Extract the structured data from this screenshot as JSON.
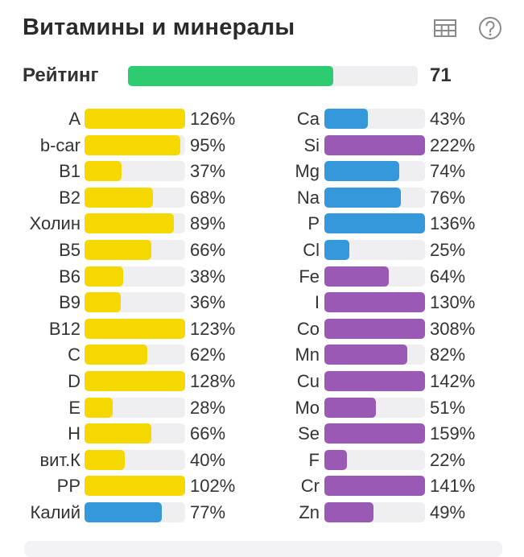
{
  "title": "Витамины и минералы",
  "icons": {
    "table": "table-icon",
    "help": "help-icon"
  },
  "rating": {
    "label": "Рейтинг",
    "value": "71",
    "fraction": 0.71
  },
  "colors": {
    "yellow": "#f5d800",
    "blue": "#3498db",
    "purple": "#9b59b6",
    "green": "#2ecc71",
    "track": "#efeff1"
  },
  "vitamins": [
    {
      "label": "A",
      "pct": "126%",
      "value": 126,
      "color": "yellow"
    },
    {
      "label": "b-car",
      "pct": "95%",
      "value": 95,
      "color": "yellow"
    },
    {
      "label": "B1",
      "pct": "37%",
      "value": 37,
      "color": "yellow"
    },
    {
      "label": "B2",
      "pct": "68%",
      "value": 68,
      "color": "yellow"
    },
    {
      "label": "Холин",
      "pct": "89%",
      "value": 89,
      "color": "yellow"
    },
    {
      "label": "B5",
      "pct": "66%",
      "value": 66,
      "color": "yellow"
    },
    {
      "label": "B6",
      "pct": "38%",
      "value": 38,
      "color": "yellow"
    },
    {
      "label": "B9",
      "pct": "36%",
      "value": 36,
      "color": "yellow"
    },
    {
      "label": "B12",
      "pct": "123%",
      "value": 123,
      "color": "yellow"
    },
    {
      "label": "C",
      "pct": "62%",
      "value": 62,
      "color": "yellow"
    },
    {
      "label": "D",
      "pct": "128%",
      "value": 128,
      "color": "yellow"
    },
    {
      "label": "E",
      "pct": "28%",
      "value": 28,
      "color": "yellow"
    },
    {
      "label": "H",
      "pct": "66%",
      "value": 66,
      "color": "yellow"
    },
    {
      "label": "вит.К",
      "pct": "40%",
      "value": 40,
      "color": "yellow"
    },
    {
      "label": "PP",
      "pct": "102%",
      "value": 102,
      "color": "yellow"
    },
    {
      "label": "Калий",
      "pct": "77%",
      "value": 77,
      "color": "blue"
    }
  ],
  "minerals": [
    {
      "label": "Ca",
      "pct": "43%",
      "value": 43,
      "color": "blue"
    },
    {
      "label": "Si",
      "pct": "222%",
      "value": 222,
      "color": "purple"
    },
    {
      "label": "Mg",
      "pct": "74%",
      "value": 74,
      "color": "blue"
    },
    {
      "label": "Na",
      "pct": "76%",
      "value": 76,
      "color": "blue"
    },
    {
      "label": "P",
      "pct": "136%",
      "value": 136,
      "color": "blue"
    },
    {
      "label": "Cl",
      "pct": "25%",
      "value": 25,
      "color": "blue"
    },
    {
      "label": "Fe",
      "pct": "64%",
      "value": 64,
      "color": "purple"
    },
    {
      "label": "I",
      "pct": "130%",
      "value": 130,
      "color": "purple"
    },
    {
      "label": "Co",
      "pct": "308%",
      "value": 308,
      "color": "purple"
    },
    {
      "label": "Mn",
      "pct": "82%",
      "value": 82,
      "color": "purple"
    },
    {
      "label": "Cu",
      "pct": "142%",
      "value": 142,
      "color": "purple"
    },
    {
      "label": "Mo",
      "pct": "51%",
      "value": 51,
      "color": "purple"
    },
    {
      "label": "Se",
      "pct": "159%",
      "value": 159,
      "color": "purple"
    },
    {
      "label": "F",
      "pct": "22%",
      "value": 22,
      "color": "purple"
    },
    {
      "label": "Cr",
      "pct": "141%",
      "value": 141,
      "color": "purple"
    },
    {
      "label": "Zn",
      "pct": "49%",
      "value": 49,
      "color": "purple"
    }
  ]
}
